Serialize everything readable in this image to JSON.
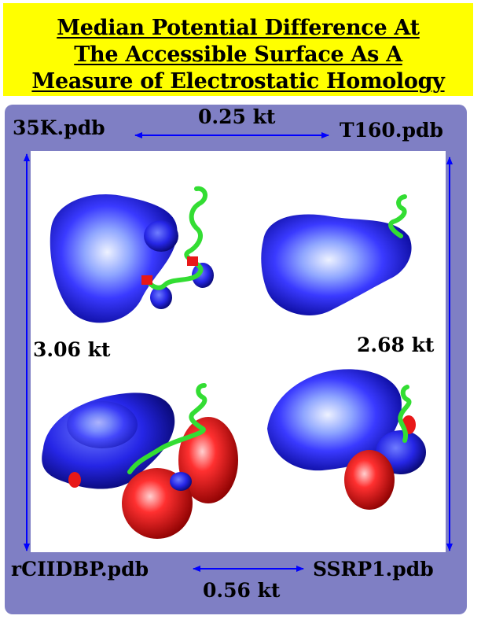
{
  "title": {
    "line1": "Median Potential Difference At",
    "line2": "The Accessible Surface As A",
    "line3": "Measure of Electrostatic Homology"
  },
  "structures": {
    "top_left": "35K.pdb",
    "top_right": "T160.pdb",
    "bottom_left": "rCIIDBP.pdb",
    "bottom_right": "SSRP1.pdb"
  },
  "differences": {
    "top": "0.25 kt",
    "bottom": "0.56 kt",
    "left": "3.06 kt",
    "right": "2.68 kt"
  },
  "colors": {
    "title_background": "#ffff00",
    "panel_background": "#7f7fc4",
    "arrow": "#0000ff",
    "negative_surface": "#1a1adc",
    "positive_surface": "#e81818",
    "backbone": "#33dd33"
  }
}
